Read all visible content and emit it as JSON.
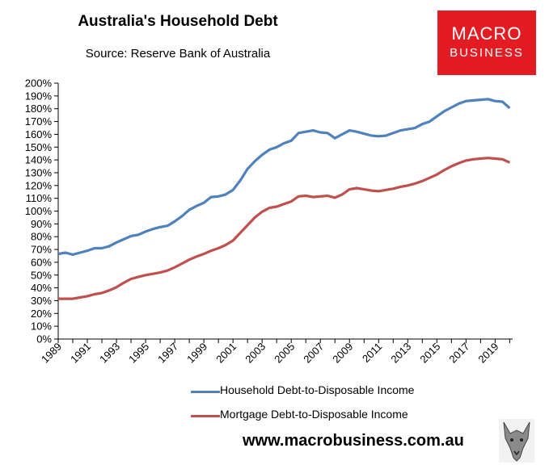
{
  "header": {
    "title": "Australia's Household Debt",
    "subtitle": "Source: Reserve Bank of Australia"
  },
  "brand": {
    "line1": "MACRO",
    "line2": "BUSINESS",
    "color": "#e31b23",
    "website": "www.macrobusiness.com.au",
    "mascot_icon": "wolf-mascot-icon"
  },
  "chart_data": {
    "type": "line",
    "title": "Australia's Household Debt",
    "subtitle": "Source: Reserve Bank of Australia",
    "xlabel": "",
    "ylabel": "",
    "xlim": [
      1989,
      2020.2
    ],
    "ylim": [
      0,
      200
    ],
    "y_ticks": [
      "0%",
      "10%",
      "20%",
      "30%",
      "40%",
      "50%",
      "60%",
      "70%",
      "80%",
      "90%",
      "100%",
      "110%",
      "120%",
      "130%",
      "140%",
      "150%",
      "160%",
      "170%",
      "180%",
      "190%",
      "200%"
    ],
    "x_ticks": [
      "1989",
      "1991",
      "1993",
      "1995",
      "1997",
      "1999",
      "2001",
      "2003",
      "2005",
      "2007",
      "2009",
      "2011",
      "2013",
      "2015",
      "2017",
      "2019"
    ],
    "grid": "none",
    "legend_position": "bottom",
    "series": [
      {
        "name": "Household Debt-to-Disposable Income",
        "color": "#4f81bd",
        "x": [
          1989,
          1989.5,
          1990,
          1990.5,
          1991,
          1991.5,
          1992,
          1992.5,
          1993,
          1993.5,
          1994,
          1994.5,
          1995,
          1995.5,
          1996,
          1996.5,
          1997,
          1997.5,
          1998,
          1998.5,
          1999,
          1999.5,
          2000,
          2000.5,
          2001,
          2001.5,
          2002,
          2002.5,
          2003,
          2003.5,
          2004,
          2004.5,
          2005,
          2005.5,
          2006,
          2006.5,
          2007,
          2007.5,
          2008,
          2008.5,
          2009,
          2009.5,
          2010,
          2010.5,
          2011,
          2011.5,
          2012,
          2012.5,
          2013,
          2013.5,
          2014,
          2014.5,
          2015,
          2015.5,
          2016,
          2016.5,
          2017,
          2017.5,
          2018,
          2018.5,
          2019,
          2019.5,
          2020
        ],
        "values": [
          66.5,
          67.5,
          66,
          67.5,
          69,
          71,
          71,
          72.5,
          75.5,
          78,
          80.5,
          81.5,
          84,
          86,
          87.5,
          88.5,
          92,
          96,
          101,
          104,
          106.5,
          111,
          111.5,
          113,
          116.5,
          124,
          133,
          139,
          144,
          148,
          150,
          153,
          155,
          161,
          162,
          163,
          161.5,
          161,
          157,
          160,
          163,
          162,
          160.5,
          159,
          158.5,
          159,
          161,
          163,
          164,
          165,
          168,
          170,
          174,
          178,
          181,
          184,
          186,
          186.5,
          187,
          187.5,
          186,
          185.5,
          180.5
        ]
      },
      {
        "name": "Mortgage Debt-to-Disposable Income",
        "color": "#c0504d",
        "x": [
          1989,
          1989.5,
          1990,
          1990.5,
          1991,
          1991.5,
          1992,
          1992.5,
          1993,
          1993.5,
          1994,
          1994.5,
          1995,
          1995.5,
          1996,
          1996.5,
          1997,
          1997.5,
          1998,
          1998.5,
          1999,
          1999.5,
          2000,
          2000.5,
          2001,
          2001.5,
          2002,
          2002.5,
          2003,
          2003.5,
          2004,
          2004.5,
          2005,
          2005.5,
          2006,
          2006.5,
          2007,
          2007.5,
          2008,
          2008.5,
          2009,
          2009.5,
          2010,
          2010.5,
          2011,
          2011.5,
          2012,
          2012.5,
          2013,
          2013.5,
          2014,
          2014.5,
          2015,
          2015.5,
          2016,
          2016.5,
          2017,
          2017.5,
          2018,
          2018.5,
          2019,
          2019.5,
          2020
        ],
        "values": [
          31.5,
          31.5,
          31.5,
          32.5,
          33.5,
          35,
          36,
          38,
          40.5,
          44,
          47,
          48.5,
          50,
          51,
          52,
          53.5,
          56,
          59,
          62,
          64.5,
          66.5,
          69,
          71,
          73.5,
          77,
          83,
          89,
          95,
          99.5,
          102.5,
          103.5,
          105.5,
          107.5,
          111.5,
          112,
          111,
          111.5,
          112,
          110.5,
          113,
          117,
          118,
          117,
          116,
          115.5,
          116.5,
          117.5,
          119,
          120,
          121.5,
          123.5,
          126,
          128.5,
          132,
          135,
          137.5,
          139.5,
          140.5,
          141,
          141.5,
          141,
          140.5,
          138
        ]
      }
    ]
  }
}
